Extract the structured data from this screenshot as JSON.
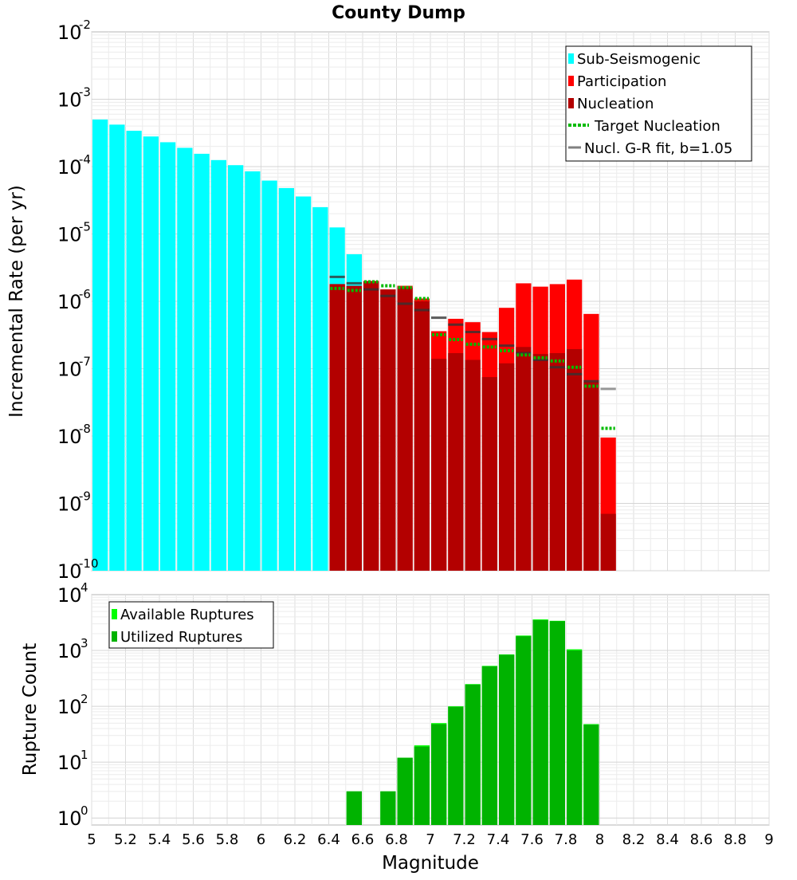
{
  "title": "County Dump",
  "colors": {
    "sub_seismogenic": "#00ffff",
    "participation": "#ff0000",
    "nucleation": "#b30000",
    "target": "#00bb00",
    "gr_fit": "#808080",
    "available": "#00ff00",
    "utilized": "#00b300"
  },
  "chart_data": [
    {
      "type": "bar",
      "title": "County Dump",
      "xlabel": "",
      "ylabel": "Incremental Rate (per yr)",
      "yscale": "log",
      "xlim": [
        5,
        9
      ],
      "ylim": [
        1e-10,
        0.01
      ],
      "y_tick_labels": [
        {
          "base": "10",
          "exp": "-10",
          "value": 1e-10
        },
        {
          "base": "10",
          "exp": "-9",
          "value": 1e-09
        },
        {
          "base": "10",
          "exp": "-8",
          "value": 1e-08
        },
        {
          "base": "10",
          "exp": "-7",
          "value": 1e-07
        },
        {
          "base": "10",
          "exp": "-6",
          "value": 1e-06
        },
        {
          "base": "10",
          "exp": "-5",
          "value": 1e-05
        },
        {
          "base": "10",
          "exp": "-4",
          "value": 0.0001
        },
        {
          "base": "10",
          "exp": "-3",
          "value": 0.001
        },
        {
          "base": "10",
          "exp": "-2",
          "value": 0.01
        }
      ],
      "grid": true,
      "legend_position": "top-right",
      "legend": [
        "Sub-Seismogenic",
        "Participation",
        "Nucleation",
        "Target Nucleation",
        "Nucl. G-R fit, b=1.05"
      ],
      "series": [
        {
          "name": "Sub-Seismogenic",
          "kind": "bar",
          "x": [
            5.05,
            5.15,
            5.25,
            5.35,
            5.45,
            5.55,
            5.65,
            5.75,
            5.85,
            5.95,
            6.05,
            6.15,
            6.25,
            6.35,
            6.45,
            6.55
          ],
          "values": [
            0.0005,
            0.00042,
            0.00034,
            0.00028,
            0.00023,
            0.00019,
            0.000155,
            0.000125,
            0.000105,
            8.5e-05,
            6.2e-05,
            4.8e-05,
            3.6e-05,
            2.5e-05,
            1.25e-05,
            5e-06
          ]
        },
        {
          "name": "Participation",
          "kind": "bar",
          "x": [
            6.45,
            6.55,
            6.65,
            6.75,
            6.85,
            6.95,
            7.05,
            7.15,
            7.25,
            7.35,
            7.45,
            7.55,
            7.65,
            7.75,
            7.85,
            7.95,
            8.05
          ],
          "values": [
            1.8e-06,
            1.7e-06,
            2e-06,
            1.5e-06,
            1.7e-06,
            1.1e-06,
            3.6e-07,
            5.5e-07,
            4.9e-07,
            3.5e-07,
            8e-07,
            1.85e-06,
            1.65e-06,
            1.8e-06,
            2.1e-06,
            6.5e-07,
            9.5e-09
          ]
        },
        {
          "name": "Nucleation",
          "kind": "bar",
          "x": [
            6.45,
            6.55,
            6.65,
            6.75,
            6.85,
            6.95,
            7.05,
            7.15,
            7.25,
            7.35,
            7.45,
            7.55,
            7.65,
            7.75,
            7.85,
            7.95,
            8.05
          ],
          "values": [
            1.8e-06,
            1.7e-06,
            2e-06,
            1.5e-06,
            1.6e-06,
            1e-06,
            1.4e-07,
            1.7e-07,
            1.35e-07,
            7.5e-08,
            1.2e-07,
            2.1e-07,
            1.65e-07,
            1.7e-07,
            1.95e-07,
            6.3e-08,
            7e-10
          ]
        },
        {
          "name": "Target Nucleation",
          "kind": "segment",
          "x": [
            6.45,
            6.55,
            6.65,
            6.75,
            6.85,
            6.95,
            7.05,
            7.15,
            7.25,
            7.35,
            7.45,
            7.55,
            7.65,
            7.75,
            7.85,
            7.95,
            8.05
          ],
          "values": [
            1.55e-06,
            1.45e-06,
            1.95e-06,
            1.7e-06,
            1.6e-06,
            1.1e-06,
            3.2e-07,
            2.7e-07,
            2.3e-07,
            2.1e-07,
            1.85e-07,
            1.6e-07,
            1.45e-07,
            1.3e-07,
            1.05e-07,
            5.5e-08,
            1.3e-08
          ]
        },
        {
          "name": "Nucl. G-R fit, b=1.05",
          "kind": "segment",
          "x": [
            6.45,
            6.55,
            6.65,
            6.75,
            6.85,
            6.95,
            7.05,
            7.15,
            7.25,
            7.35,
            7.45,
            7.55,
            7.65,
            7.75,
            7.85,
            7.95,
            8.05
          ],
          "values": [
            2.3e-06,
            1.85e-06,
            1.5e-06,
            1.2e-06,
            9.2e-07,
            7.4e-07,
            5.7e-07,
            4.5e-07,
            3.5e-07,
            2.75e-07,
            2.2e-07,
            1.7e-07,
            1.35e-07,
            1.05e-07,
            8.3e-08,
            6.5e-08,
            5e-08
          ]
        }
      ]
    },
    {
      "type": "bar",
      "title": "",
      "xlabel": "Magnitude",
      "ylabel": "Rupture Count",
      "yscale": "log",
      "xlim": [
        5,
        9
      ],
      "ylim": [
        0.75,
        10000
      ],
      "x_ticks": [
        "5",
        "5.2",
        "5.4",
        "5.6",
        "5.8",
        "6",
        "6.2",
        "6.4",
        "6.6",
        "6.8",
        "7",
        "7.2",
        "7.4",
        "7.6",
        "7.8",
        "8",
        "8.2",
        "8.4",
        "8.6",
        "8.8",
        "9"
      ],
      "y_tick_labels": [
        {
          "base": "10",
          "exp": "0",
          "value": 1
        },
        {
          "base": "10",
          "exp": "1",
          "value": 10
        },
        {
          "base": "10",
          "exp": "2",
          "value": 100
        },
        {
          "base": "10",
          "exp": "3",
          "value": 1000
        },
        {
          "base": "10",
          "exp": "4",
          "value": 10000
        }
      ],
      "grid": true,
      "legend_position": "top-left",
      "legend": [
        "Available Ruptures",
        "Utilized Ruptures"
      ],
      "series": [
        {
          "name": "Available Ruptures",
          "x": [
            6.55,
            6.75,
            6.85,
            6.95,
            7.05,
            7.15,
            7.25,
            7.35,
            7.45,
            7.55,
            7.65,
            7.75,
            7.85,
            7.95
          ],
          "values": [
            3,
            3,
            12,
            20,
            50,
            100,
            250,
            530,
            850,
            1850,
            3600,
            3400,
            1050,
            48
          ]
        },
        {
          "name": "Utilized Ruptures",
          "x": [
            6.55,
            6.75,
            6.85,
            6.95,
            7.05,
            7.15,
            7.25,
            7.35,
            7.45,
            7.55,
            7.65,
            7.75,
            7.85,
            7.95
          ],
          "values": [
            3,
            3,
            12,
            19,
            48,
            98,
            245,
            520,
            840,
            1800,
            3500,
            3350,
            1000,
            47
          ]
        }
      ]
    }
  ]
}
